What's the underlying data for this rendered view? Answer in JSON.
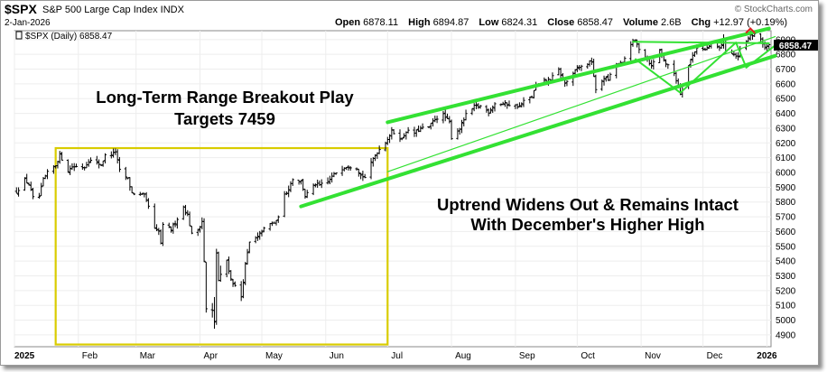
{
  "header": {
    "symbol": "$SPX",
    "name": "S&P 500 Large Cap Index INDX",
    "date": "2-Jan-2026",
    "brand": "© StockCharts.com",
    "open_label": "Open",
    "open": "6878.11",
    "high_label": "High",
    "high": "6894.87",
    "low_label": "Low",
    "low": "6824.31",
    "close_label": "Close",
    "close": "6858.47",
    "volume_label": "Volume",
    "volume": "2.6B",
    "chg_label": "Chg",
    "chg": "+12.97 (+0.19%)",
    "legend": "$SPX (Daily) 6858.47",
    "last_price": "6858.47"
  },
  "annotations": {
    "breakout_line1": "Long-Term Range Breakout Play",
    "breakout_line2": "Targets 7459",
    "uptrend_line1": "Uptrend Widens Out & Remains Intact",
    "uptrend_line2": "With December's Higher High"
  },
  "colors": {
    "bars": "#000000",
    "trendline": "#33e133",
    "range_box": "#d9cc00",
    "higher_high_marker": "#e02020"
  },
  "chart_data": {
    "type": "ohlc",
    "series": "$SPX (Daily)",
    "y_ticks": [
      4900,
      5000,
      5100,
      5200,
      5300,
      5400,
      5500,
      5600,
      5700,
      5800,
      5900,
      6000,
      6100,
      6200,
      6300,
      6400,
      6500,
      6600,
      6700,
      6800,
      6900
    ],
    "y_range": [
      4820,
      6960
    ],
    "x_tick_labels": [
      "2025",
      "Feb",
      "Mar",
      "Apr",
      "May",
      "Jun",
      "Jul",
      "Aug",
      "Sep",
      "Oct",
      "Nov",
      "Dec",
      "2026"
    ],
    "x_tick_dates": [
      "2025-01-01",
      "2025-02-01",
      "2025-03-01",
      "2025-04-01",
      "2025-05-01",
      "2025-06-01",
      "2025-07-01",
      "2025-08-01",
      "2025-09-01",
      "2025-10-01",
      "2025-11-01",
      "2025-12-01",
      "2026-01-01"
    ],
    "x_range": [
      "2025-01-01",
      "2026-01-03"
    ],
    "closes": [
      [
        "2025-01-02",
        5868
      ],
      [
        "2025-01-06",
        5950
      ],
      [
        "2025-01-08",
        5920
      ],
      [
        "2025-01-10",
        5827
      ],
      [
        "2025-01-13",
        5836
      ],
      [
        "2025-01-15",
        5950
      ],
      [
        "2025-01-17",
        5997
      ],
      [
        "2025-01-21",
        6049
      ],
      [
        "2025-01-23",
        6119
      ],
      [
        "2025-01-27",
        6012
      ],
      [
        "2025-01-29",
        6039
      ],
      [
        "2025-01-31",
        6040
      ],
      [
        "2025-02-04",
        6037
      ],
      [
        "2025-02-06",
        6083
      ],
      [
        "2025-02-10",
        6066
      ],
      [
        "2025-02-12",
        6051
      ],
      [
        "2025-02-14",
        6114
      ],
      [
        "2025-02-18",
        6129
      ],
      [
        "2025-02-19",
        6144
      ],
      [
        "2025-02-21",
        6013
      ],
      [
        "2025-02-25",
        5955
      ],
      [
        "2025-02-27",
        5861
      ],
      [
        "2025-03-03",
        5849
      ],
      [
        "2025-03-05",
        5842
      ],
      [
        "2025-03-07",
        5770
      ],
      [
        "2025-03-10",
        5614
      ],
      [
        "2025-03-12",
        5599
      ],
      [
        "2025-03-13",
        5521
      ],
      [
        "2025-03-14",
        5639
      ],
      [
        "2025-03-18",
        5614
      ],
      [
        "2025-03-20",
        5662
      ],
      [
        "2025-03-24",
        5767
      ],
      [
        "2025-03-26",
        5712
      ],
      [
        "2025-03-28",
        5581
      ],
      [
        "2025-03-31",
        5612
      ],
      [
        "2025-04-02",
        5671
      ],
      [
        "2025-04-03",
        5396
      ],
      [
        "2025-04-04",
        5074
      ],
      [
        "2025-04-07",
        5062
      ],
      [
        "2025-04-08",
        4982
      ],
      [
        "2025-04-09",
        5456
      ],
      [
        "2025-04-10",
        5268
      ],
      [
        "2025-04-14",
        5406
      ],
      [
        "2025-04-16",
        5276
      ],
      [
        "2025-04-21",
        5158
      ],
      [
        "2025-04-23",
        5376
      ],
      [
        "2025-04-25",
        5525
      ],
      [
        "2025-04-29",
        5561
      ],
      [
        "2025-05-01",
        5604
      ],
      [
        "2025-05-05",
        5650
      ],
      [
        "2025-05-08",
        5664
      ],
      [
        "2025-05-12",
        5844
      ],
      [
        "2025-05-14",
        5892
      ],
      [
        "2025-05-16",
        5958
      ],
      [
        "2025-05-20",
        5940
      ],
      [
        "2025-05-22",
        5842
      ],
      [
        "2025-05-27",
        5921
      ],
      [
        "2025-05-29",
        5912
      ],
      [
        "2025-06-02",
        5936
      ],
      [
        "2025-06-04",
        5971
      ],
      [
        "2025-06-06",
        6000
      ],
      [
        "2025-06-10",
        6038
      ],
      [
        "2025-06-12",
        6045
      ],
      [
        "2025-06-16",
        6033
      ],
      [
        "2025-06-18",
        5981
      ],
      [
        "2025-06-20",
        5967
      ],
      [
        "2025-06-24",
        6092
      ],
      [
        "2025-06-26",
        6141
      ],
      [
        "2025-06-30",
        6205
      ],
      [
        "2025-07-03",
        6279
      ],
      [
        "2025-07-08",
        6226
      ],
      [
        "2025-07-10",
        6280
      ],
      [
        "2025-07-14",
        6268
      ],
      [
        "2025-07-17",
        6297
      ],
      [
        "2025-07-21",
        6305
      ],
      [
        "2025-07-24",
        6363
      ],
      [
        "2025-07-28",
        6389
      ],
      [
        "2025-07-31",
        6339
      ],
      [
        "2025-08-01",
        6238
      ],
      [
        "2025-08-05",
        6299
      ],
      [
        "2025-08-08",
        6389
      ],
      [
        "2025-08-12",
        6445
      ],
      [
        "2025-08-15",
        6449
      ],
      [
        "2025-08-19",
        6411
      ],
      [
        "2025-08-22",
        6466
      ],
      [
        "2025-08-26",
        6465
      ],
      [
        "2025-08-29",
        6460
      ],
      [
        "2025-09-03",
        6448
      ],
      [
        "2025-09-05",
        6481
      ],
      [
        "2025-09-09",
        6512
      ],
      [
        "2025-09-11",
        6587
      ],
      [
        "2025-09-15",
        6615
      ],
      [
        "2025-09-18",
        6631
      ],
      [
        "2025-09-22",
        6693
      ],
      [
        "2025-09-25",
        6604
      ],
      [
        "2025-09-29",
        6661
      ],
      [
        "2025-10-01",
        6711
      ],
      [
        "2025-10-03",
        6715
      ],
      [
        "2025-10-08",
        6753
      ],
      [
        "2025-10-10",
        6552
      ],
      [
        "2025-10-14",
        6644
      ],
      [
        "2025-10-16",
        6629
      ],
      [
        "2025-10-20",
        6735
      ],
      [
        "2025-10-23",
        6738
      ],
      [
        "2025-10-27",
        6875
      ],
      [
        "2025-10-29",
        6890
      ],
      [
        "2025-10-31",
        6840
      ],
      [
        "2025-11-04",
        6771
      ],
      [
        "2025-11-06",
        6720
      ],
      [
        "2025-11-10",
        6832
      ],
      [
        "2025-11-13",
        6737
      ],
      [
        "2025-11-17",
        6672
      ],
      [
        "2025-11-20",
        6538
      ],
      [
        "2025-11-21",
        6602
      ],
      [
        "2025-11-25",
        6765
      ],
      [
        "2025-11-28",
        6849
      ],
      [
        "2025-12-02",
        6829
      ],
      [
        "2025-12-05",
        6870
      ],
      [
        "2025-12-09",
        6840
      ],
      [
        "2025-12-11",
        6901
      ],
      [
        "2025-12-12",
        6827
      ],
      [
        "2025-12-16",
        6800
      ],
      [
        "2025-12-18",
        6774
      ],
      [
        "2025-12-19",
        6834
      ],
      [
        "2025-12-22",
        6878
      ],
      [
        "2025-12-24",
        6932
      ],
      [
        "2025-12-26",
        6929
      ],
      [
        "2025-12-29",
        6905
      ],
      [
        "2025-12-31",
        6845
      ],
      [
        "2026-01-02",
        6858
      ]
    ],
    "range_box": {
      "start": "2025-01-21",
      "end": "2025-07-01",
      "low": 4835,
      "high": 6165
    },
    "trendlines": [
      {
        "name": "upper channel",
        "from": [
          "2025-07-01",
          6340
        ],
        "to": [
          "2026-01-02",
          6975
        ]
      },
      {
        "name": "lower channel",
        "from": [
          "2025-05-20",
          5770
        ],
        "to": [
          "2026-01-05",
          6790
        ]
      },
      {
        "name": "inner trend",
        "from": [
          "2025-07-01",
          6005
        ],
        "to": [
          "2026-01-05",
          6920
        ]
      },
      {
        "name": "top level",
        "from": [
          "2025-10-28",
          6885
        ],
        "to": [
          "2026-01-02",
          6875
        ]
      }
    ],
    "polylines": [
      {
        "name": "november dip",
        "points": [
          [
            "2025-10-29",
            6770
          ],
          [
            "2025-11-20",
            6540
          ],
          [
            "2025-12-17",
            6880
          ],
          [
            "2025-12-22",
            6710
          ],
          [
            "2026-01-05",
            6860
          ]
        ]
      }
    ],
    "markers": [
      {
        "name": "higher high",
        "at": [
          "2025-12-24",
          6932
        ]
      }
    ]
  }
}
